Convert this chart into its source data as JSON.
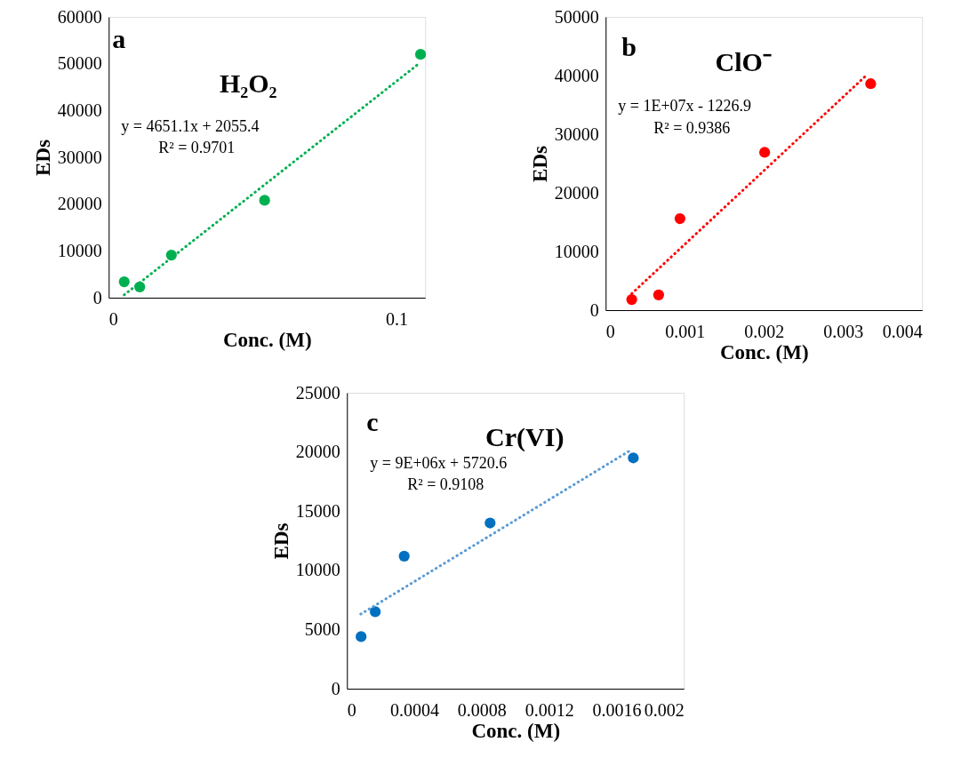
{
  "chart_data": [
    {
      "type": "scatter",
      "title": "H₂O₂",
      "xlabel": "Conc. (M)",
      "ylabel": "EDs",
      "annotations": [
        "a",
        "y = 4651.1x + 2055.4",
        "R² = 0.9701"
      ],
      "xlim": [
        0,
        0.11
      ],
      "xticks": [
        0,
        0.1
      ],
      "ylim": [
        0,
        60000
      ],
      "yticks": [
        0,
        10000,
        20000,
        30000,
        40000,
        50000,
        60000
      ],
      "grid": false,
      "marker": "circle",
      "series": [
        {
          "color": "#00b050",
          "x": [
            0.0054,
            0.0108,
            0.0218,
            0.0542,
            0.1084
          ],
          "values": [
            3400,
            2300,
            9100,
            20800,
            52000
          ]
        },
        {
          "type": "line",
          "line_style": "dotted",
          "marker": "none",
          "color": "#00b050",
          "x": [
            0.0054,
            0.1074
          ],
          "values": [
            600,
            49800
          ]
        }
      ]
    },
    {
      "type": "scatter",
      "title": "ClO⁻",
      "xlabel": "Conc. (M)",
      "ylabel": "EDs",
      "annotations": [
        "b",
        "y = 1E+07x - 1226.9",
        "R² = 0.9386"
      ],
      "xlim": [
        0,
        0.004
      ],
      "xticks": [
        0,
        0.001,
        0.002,
        0.003,
        0.004
      ],
      "ylim": [
        0,
        50000
      ],
      "yticks": [
        0,
        10000,
        20000,
        30000,
        40000,
        50000
      ],
      "grid": false,
      "marker": "circle",
      "series": [
        {
          "color": "#ff0000",
          "x": [
            0.00033,
            0.00067,
            0.00094,
            0.00201,
            0.00335
          ],
          "values": [
            1800,
            2600,
            15600,
            26900,
            38600
          ]
        },
        {
          "type": "line",
          "line_style": "dotted",
          "marker": "none",
          "color": "#ff0000",
          "x": [
            0.00033,
            0.0033
          ],
          "values": [
            2800,
            40100
          ]
        }
      ]
    },
    {
      "type": "scatter",
      "title": "Cr(VI)",
      "xlabel": "Conc. (M)",
      "ylabel": "EDs",
      "annotations": [
        "c",
        "y = 9E+06x + 5720.6",
        "R² = 0.9108"
      ],
      "xlim": [
        0,
        0.002
      ],
      "xticks": [
        0,
        0.0004,
        0.0008,
        0.0012,
        0.0016,
        0.002
      ],
      "ylim": [
        0,
        25000
      ],
      "yticks": [
        0,
        5000,
        10000,
        15000,
        20000,
        25000
      ],
      "grid": false,
      "marker": "circle",
      "series": [
        {
          "color": "#0070c0",
          "x": [
            8.4e-05,
            0.000168,
            0.00034,
            0.00085,
            0.0017
          ],
          "values": [
            4400,
            6500,
            11200,
            14000,
            19500
          ]
        },
        {
          "type": "line",
          "line_style": "dotted",
          "marker": "none",
          "color": "#5b9bd5",
          "x": [
            8.2e-05,
            0.00169
          ],
          "values": [
            6300,
            20200
          ]
        }
      ]
    }
  ]
}
